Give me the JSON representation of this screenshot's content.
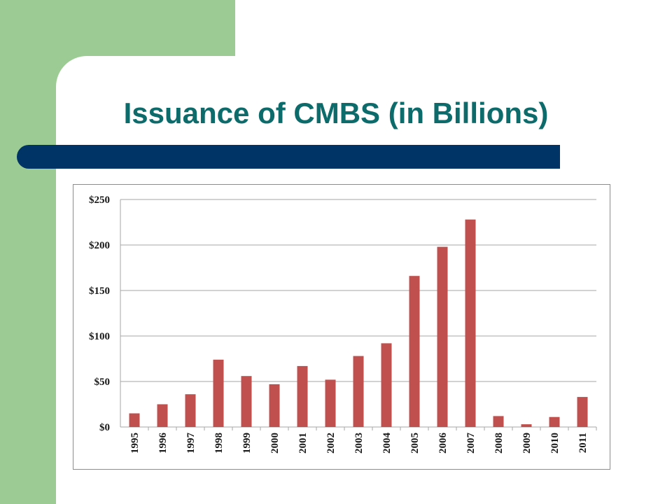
{
  "slide": {
    "title": "Issuance of CMBS (in Billions)",
    "colors": {
      "sidebar_green": "#9ccc94",
      "title_teal": "#0e6b6b",
      "bar_navy": "#003366",
      "bar_fill": "#c0504d",
      "grid": "#a6a6a6"
    }
  },
  "chart_data": {
    "type": "bar",
    "categories": [
      "1995",
      "1996",
      "1997",
      "1998",
      "1999",
      "2000",
      "2001",
      "2002",
      "2003",
      "2004",
      "2005",
      "2006",
      "2007",
      "2008",
      "2009",
      "2010",
      "2011"
    ],
    "values": [
      15,
      25,
      36,
      74,
      56,
      47,
      67,
      52,
      78,
      92,
      166,
      198,
      228,
      12,
      3,
      11,
      33
    ],
    "yticks": [
      "$0",
      "$50",
      "$100",
      "$150",
      "$200",
      "$250"
    ],
    "ylim": [
      0,
      250
    ],
    "ystep": 50,
    "grid": true,
    "legend": "none",
    "title": "",
    "xlabel": "",
    "ylabel": ""
  }
}
